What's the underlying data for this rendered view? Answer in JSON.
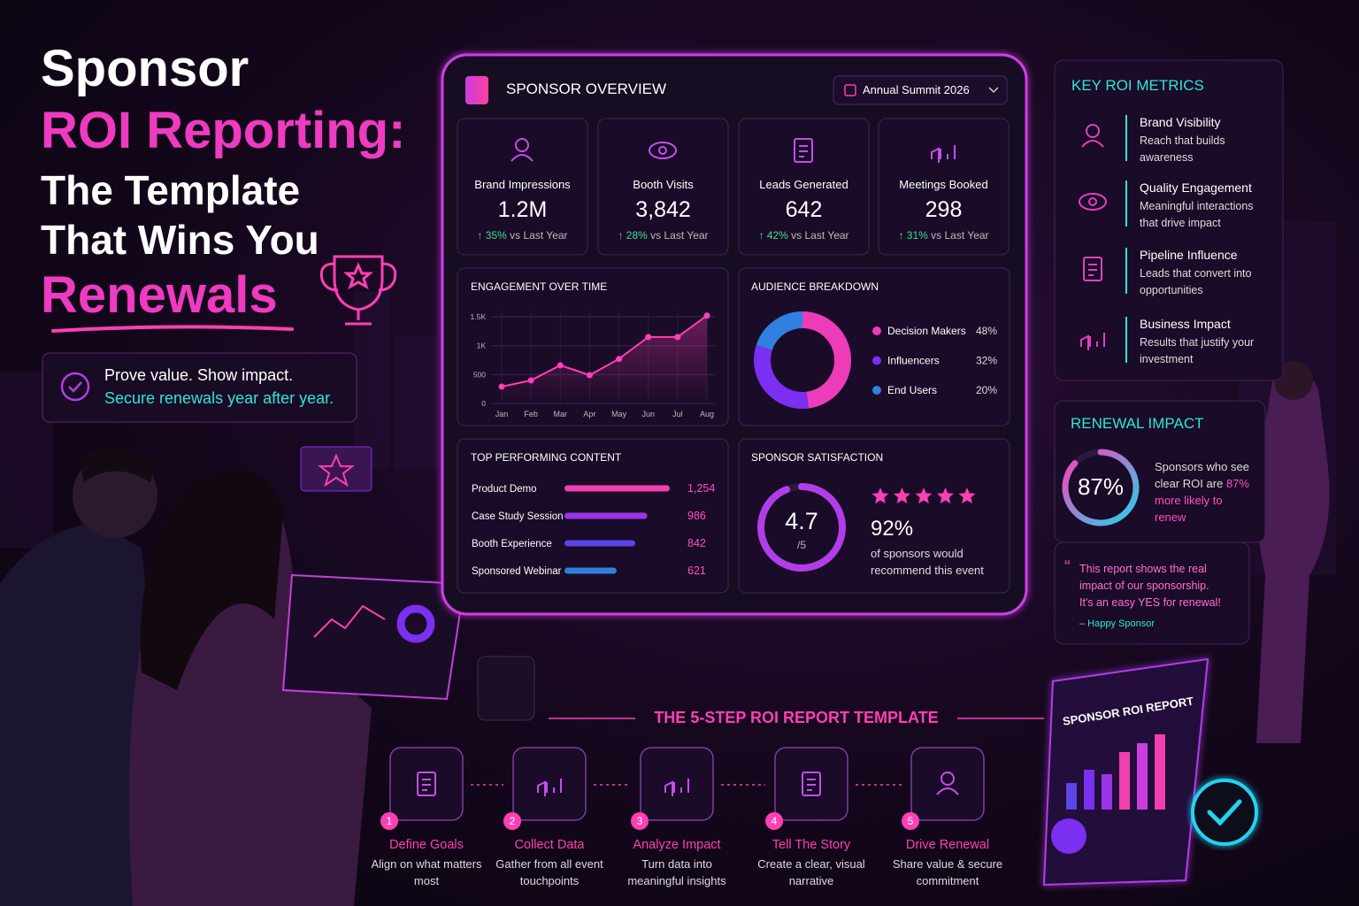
{
  "hero": {
    "line1": "Sponsor",
    "line2": "ROI Reporting:",
    "line3": "The Template",
    "line4": "That Wins You",
    "line5": "Renewals",
    "tagline": "Prove value. Show impact.",
    "tagline_highlight": "Secure renewals year after year."
  },
  "dashboard": {
    "title": "SPONSOR OVERVIEW",
    "event": "Annual Summit 2026",
    "kpis": [
      {
        "label": "Brand Impressions",
        "value": "1.2M",
        "change": "↑ 35%",
        "period": "vs Last Year"
      },
      {
        "label": "Booth Visits",
        "value": "3,842",
        "change": "↑ 28%",
        "period": "vs Last Year"
      },
      {
        "label": "Leads Generated",
        "value": "642",
        "change": "↑ 42%",
        "period": "vs Last Year"
      },
      {
        "label": "Meetings Booked",
        "value": "298",
        "change": "↑ 31%",
        "period": "vs Last Year"
      }
    ],
    "engagement": {
      "type": "line",
      "title": "ENGAGEMENT OVER TIME",
      "categories": [
        "Jan",
        "Feb",
        "Mar",
        "Apr",
        "May",
        "Jun",
        "Jul",
        "Aug"
      ],
      "values": [
        290,
        400,
        660,
        490,
        770,
        1150,
        1150,
        1520
      ],
      "color": "#ff3fb4",
      "ylim": [
        0,
        1600
      ],
      "yticks": [
        0,
        500,
        {
          "value": 1000,
          "label": "1K"
        },
        {
          "value": 1500,
          "label": "1.5K"
        }
      ],
      "grid": true
    },
    "audience": {
      "type": "donut",
      "title": "AUDIENCE BREAKDOWN",
      "categories": [
        "Decision Makers",
        "Influencers",
        "End Users"
      ],
      "values": [
        48,
        32,
        20
      ],
      "value_labels": [
        "48%",
        "32%",
        "20%"
      ],
      "colors": [
        "#ee3bb8",
        "#7b2ff0",
        "#2f80e0"
      ]
    },
    "content": {
      "type": "bar",
      "title": "TOP PERFORMING CONTENT",
      "categories": [
        "Product Demo",
        "Case Study Session",
        "Booth Experience",
        "Sponsored Webinar"
      ],
      "values": [
        1254,
        986,
        842,
        621
      ],
      "value_labels": [
        "1,254",
        "986",
        "842",
        "621"
      ],
      "colors": [
        "#f23fb0",
        "#9a35e8",
        "#5a45e6",
        "#2f7fd8"
      ]
    },
    "satisfaction": {
      "title": "SPONSOR SATISFACTION",
      "score": 4.7,
      "out_of": {
        "value": 5,
        "label": "/5"
      },
      "stars": 5,
      "recommend": {
        "value": 92,
        "label": "92%"
      },
      "recommend_text": "of sponsors would recommend this event"
    }
  },
  "key_metrics": {
    "title": "KEY ROI METRICS",
    "items": [
      {
        "title": "Brand Visibility",
        "desc": "Reach that builds awareness"
      },
      {
        "title": "Quality Engagement",
        "desc": "Meaningful interactions that drive impact"
      },
      {
        "title": "Pipeline Influence",
        "desc": "Leads that convert into opportunities"
      },
      {
        "title": "Business Impact",
        "desc": "Results that justify your investment"
      }
    ]
  },
  "renewal": {
    "title": "RENEWAL IMPACT",
    "value": 87,
    "label": "87%",
    "text": "Sponsors who see clear ROI are",
    "highlight": "87% more likely to renew"
  },
  "quote": {
    "text": "This report shows the real impact of our sponsorship. It's an easy YES for renewal!",
    "author": "– Happy Sponsor"
  },
  "steps": {
    "title": "THE 5-STEP ROI REPORT TEMPLATE",
    "items": [
      {
        "number": "1",
        "title": "Define Goals",
        "desc": "Align on what matters most"
      },
      {
        "number": "2",
        "title": "Collect Data",
        "desc": "Gather from all event touchpoints"
      },
      {
        "number": "3",
        "title": "Analyze Impact",
        "desc": "Turn data into meaningful insights"
      },
      {
        "number": "4",
        "title": "Tell The Story",
        "desc": "Create a clear, visual narrative"
      },
      {
        "number": "5",
        "title": "Drive Renewal",
        "desc": "Share value & secure commitment"
      }
    ]
  },
  "report_card": {
    "title": "SPONSOR ROI REPORT"
  }
}
